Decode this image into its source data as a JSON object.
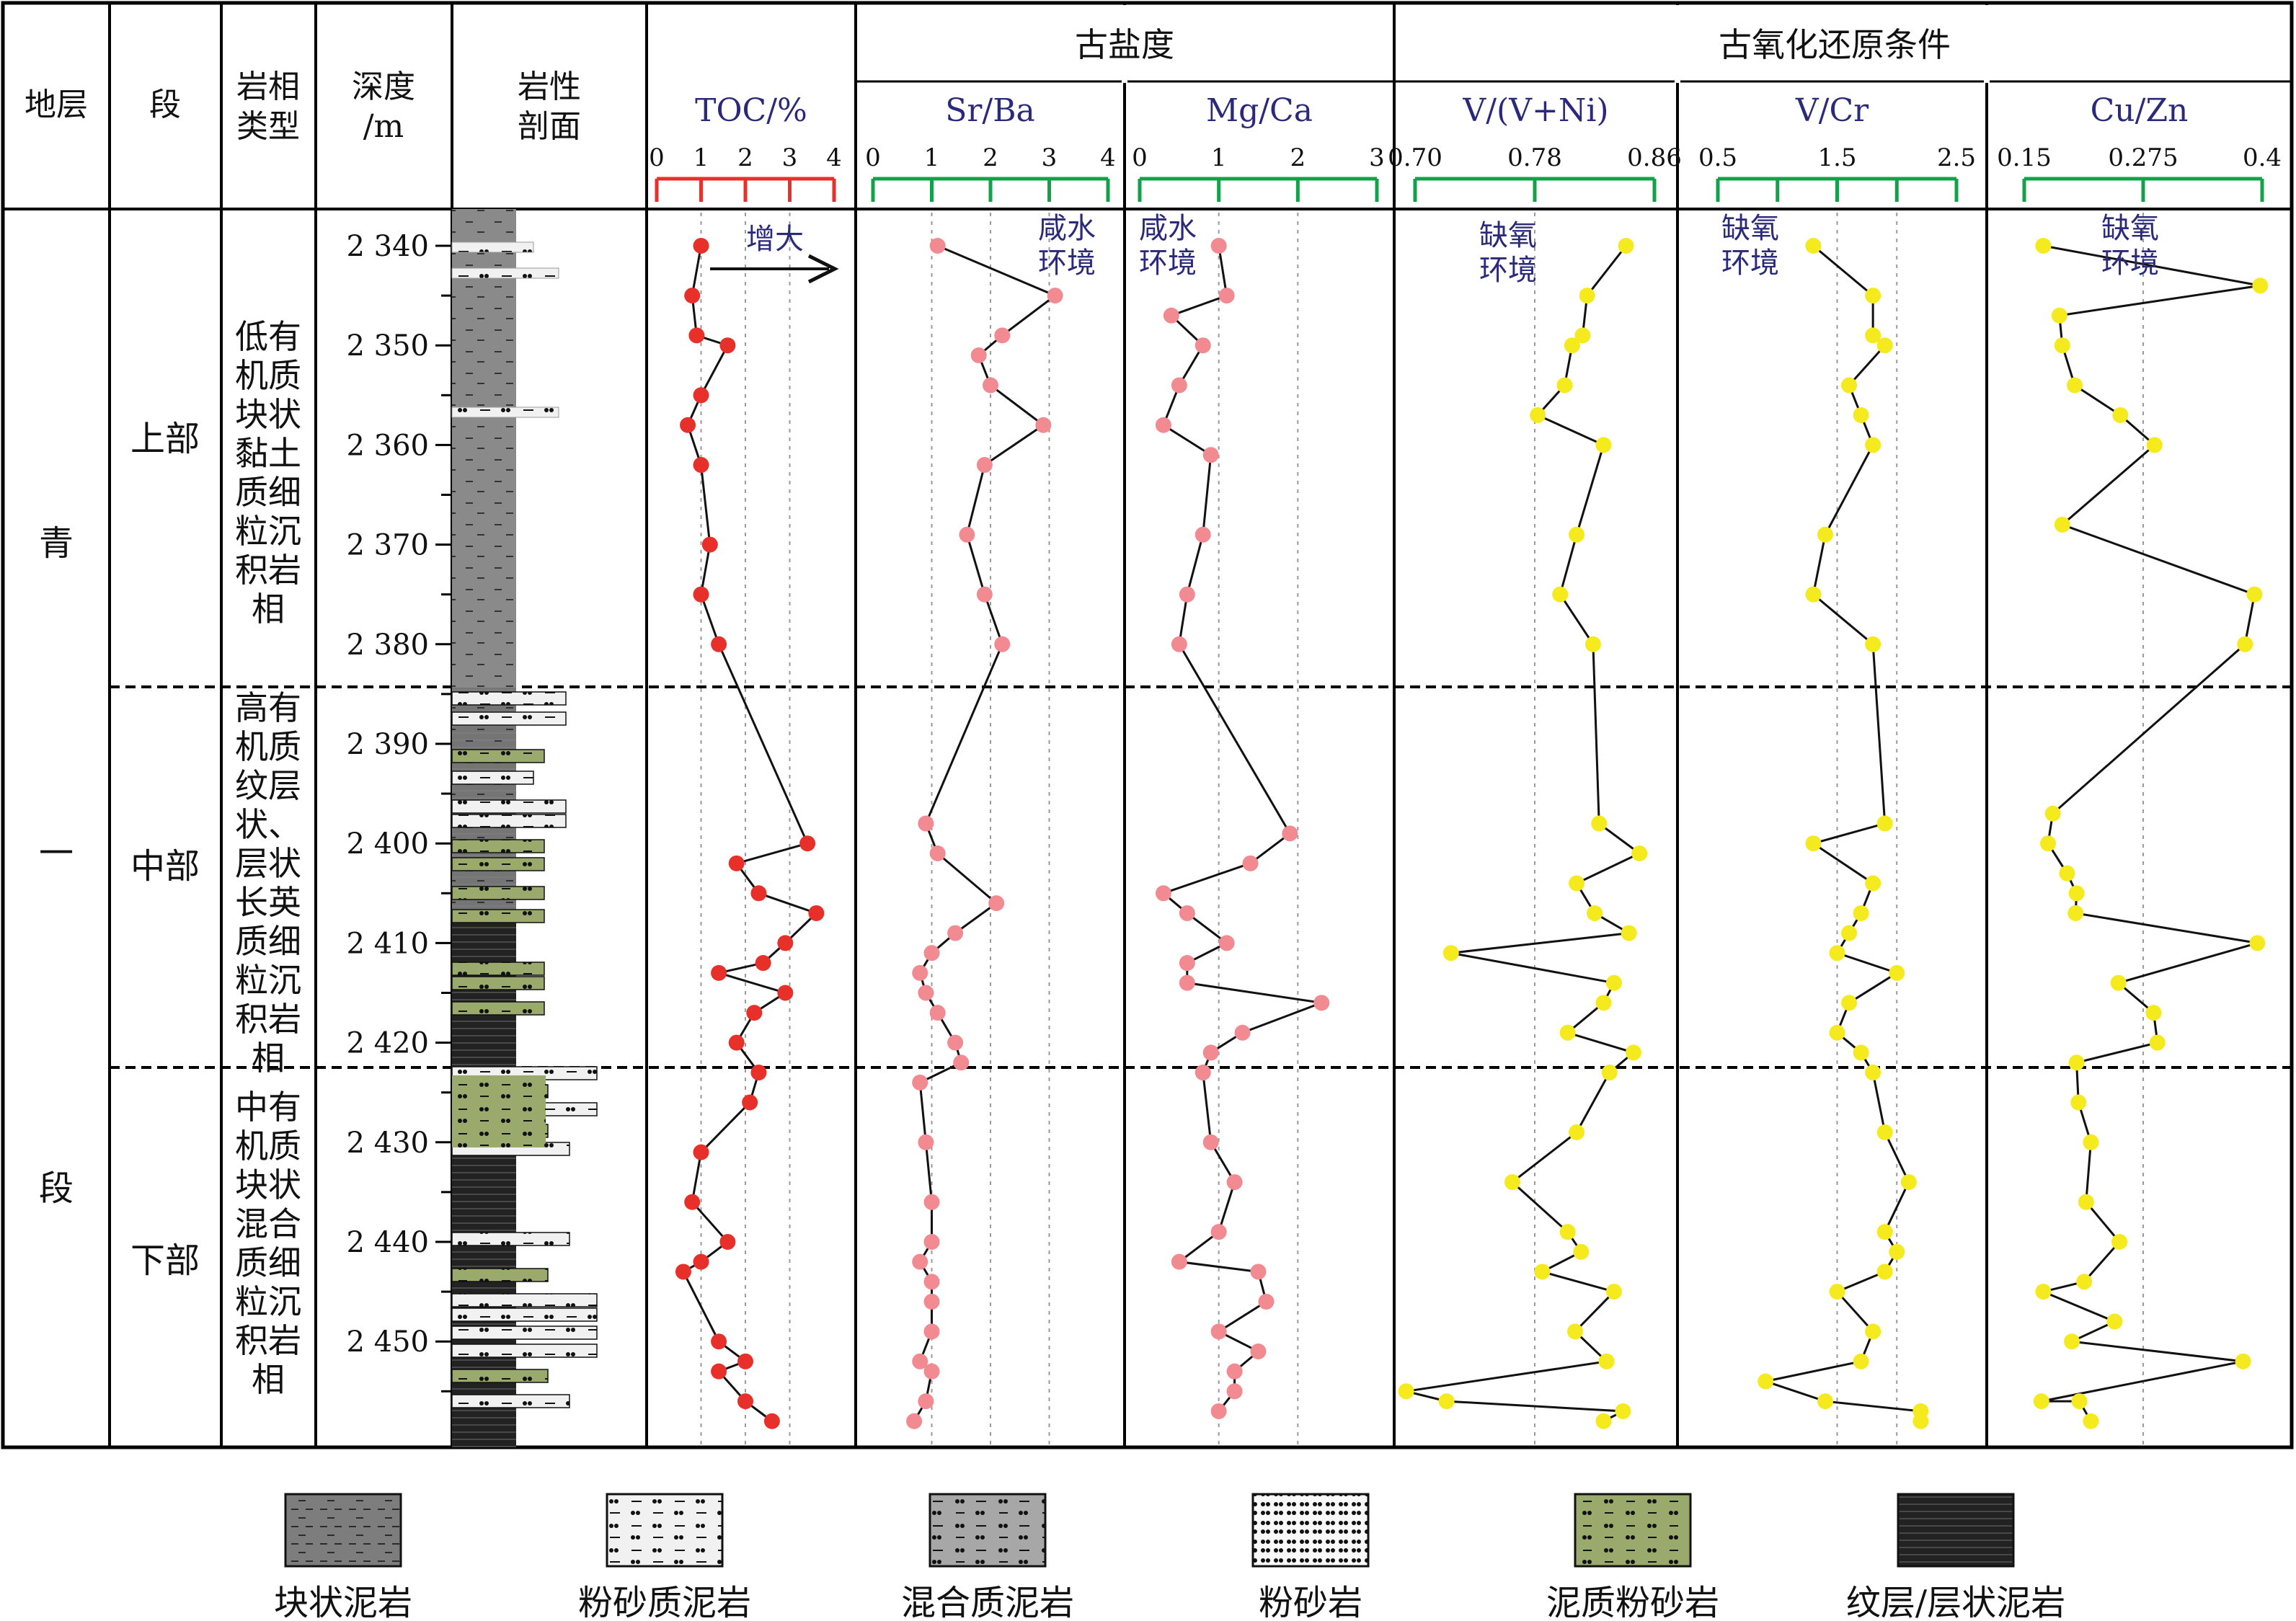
{
  "header": {
    "col_stratum": "地层",
    "col_member": "段",
    "col_facies": [
      "岩相",
      "类型"
    ],
    "col_depth": [
      "深度",
      "/m"
    ],
    "col_litho": [
      "岩性",
      "剖面"
    ],
    "group_salinity": "古盐度",
    "group_redox": "古氧化还原条件"
  },
  "stratum_chars": [
    "青",
    "一",
    "段"
  ],
  "members": [
    {
      "label": "上部",
      "top": 2336,
      "bottom": 2384
    },
    {
      "label": "中部",
      "top": 2384,
      "bottom": 2422
    },
    {
      "label": "下部",
      "top": 2422,
      "bottom": 2458
    }
  ],
  "facies": [
    [
      "低有",
      "机质",
      "块状",
      "黏土",
      "质细",
      "粒沉",
      "积岩",
      "相"
    ],
    [
      "高有",
      "机质",
      "纹层",
      "状、",
      "层状",
      "长英",
      "质细",
      "粒沉",
      "积岩",
      "相"
    ],
    [
      "中有",
      "机质",
      "块状",
      "混合",
      "质细",
      "粒沉",
      "积岩",
      "相"
    ]
  ],
  "depth_ticks": [
    "2 340",
    "2 350",
    "2 360",
    "2 370",
    "2 380",
    "2 390",
    "2 400",
    "2 410",
    "2 420",
    "2 430",
    "2 440",
    "2 450"
  ],
  "legend": [
    {
      "pattern": "massive-mudstone",
      "label": "块状泥岩"
    },
    {
      "pattern": "silty-mudstone",
      "label": "粉砂质泥岩"
    },
    {
      "pattern": "mixed-mudstone",
      "label": "混合质泥岩"
    },
    {
      "pattern": "siltstone",
      "label": "粉砂岩"
    },
    {
      "pattern": "muddy-siltstone",
      "label": "泥质粉砂岩"
    },
    {
      "pattern": "laminated-mudstone",
      "label": "纹层/层状泥岩"
    }
  ],
  "colors": {
    "toc": "#e8302b",
    "salinity": "#f28a91",
    "redox": "#f5ea1e",
    "axis_red": "#e8302b",
    "axis_green": "#13a24a",
    "title_text": "#2b2a7a",
    "silt": "#9aaa6c"
  },
  "chart_data": [
    {
      "type": "line",
      "title": "TOC/%",
      "xlim": [
        0,
        4
      ],
      "xticks": [
        "0",
        "1",
        "2",
        "3",
        "4"
      ],
      "annotation": "增大",
      "points": [
        [
          1.0,
          2340
        ],
        [
          0.8,
          2345
        ],
        [
          0.9,
          2349
        ],
        [
          1.6,
          2350
        ],
        [
          1.0,
          2355
        ],
        [
          0.7,
          2358
        ],
        [
          1.0,
          2362
        ],
        [
          1.2,
          2370
        ],
        [
          1.0,
          2375
        ],
        [
          1.4,
          2380
        ],
        [
          3.4,
          2400
        ],
        [
          1.8,
          2402
        ],
        [
          2.3,
          2405
        ],
        [
          3.6,
          2407
        ],
        [
          2.9,
          2410
        ],
        [
          2.4,
          2412
        ],
        [
          1.4,
          2413
        ],
        [
          2.9,
          2415
        ],
        [
          2.2,
          2417
        ],
        [
          1.8,
          2420
        ],
        [
          2.3,
          2423
        ],
        [
          2.1,
          2426
        ],
        [
          1.0,
          2431
        ],
        [
          0.8,
          2436
        ],
        [
          1.6,
          2440
        ],
        [
          1.0,
          2442
        ],
        [
          0.6,
          2443
        ],
        [
          1.4,
          2450
        ],
        [
          2.0,
          2452
        ],
        [
          1.4,
          2453
        ],
        [
          2.0,
          2456
        ],
        [
          2.6,
          2458
        ]
      ]
    },
    {
      "type": "line",
      "title": "Sr/Ba",
      "xlim": [
        0,
        4
      ],
      "xticks": [
        "0",
        "1",
        "2",
        "3",
        "4"
      ],
      "annotation": [
        "咸水",
        "环境"
      ],
      "points": [
        [
          1.1,
          2340
        ],
        [
          3.1,
          2345
        ],
        [
          2.2,
          2349
        ],
        [
          1.8,
          2351
        ],
        [
          2.0,
          2354
        ],
        [
          2.9,
          2358
        ],
        [
          1.9,
          2362
        ],
        [
          1.6,
          2369
        ],
        [
          1.9,
          2375
        ],
        [
          2.2,
          2380
        ],
        [
          0.9,
          2398
        ],
        [
          1.1,
          2401
        ],
        [
          2.1,
          2406
        ],
        [
          1.4,
          2409
        ],
        [
          1.0,
          2411
        ],
        [
          0.8,
          2413
        ],
        [
          0.9,
          2415
        ],
        [
          1.1,
          2417
        ],
        [
          1.4,
          2420
        ],
        [
          1.5,
          2422
        ],
        [
          0.8,
          2424
        ],
        [
          0.9,
          2430
        ],
        [
          1.0,
          2436
        ],
        [
          1.0,
          2440
        ],
        [
          0.8,
          2442
        ],
        [
          1.0,
          2444
        ],
        [
          1.0,
          2446
        ],
        [
          1.0,
          2449
        ],
        [
          0.8,
          2452
        ],
        [
          1.0,
          2453
        ],
        [
          0.9,
          2456
        ],
        [
          0.7,
          2458
        ]
      ]
    },
    {
      "type": "line",
      "title": "Mg/Ca",
      "xlim": [
        0,
        3
      ],
      "xticks": [
        "0",
        "1",
        "2",
        "3"
      ],
      "annotation": [
        "咸水",
        "环境"
      ],
      "points": [
        [
          1.0,
          2340
        ],
        [
          1.1,
          2345
        ],
        [
          0.4,
          2347
        ],
        [
          0.8,
          2350
        ],
        [
          0.5,
          2354
        ],
        [
          0.3,
          2358
        ],
        [
          0.9,
          2361
        ],
        [
          0.8,
          2369
        ],
        [
          0.6,
          2375
        ],
        [
          0.5,
          2380
        ],
        [
          1.9,
          2399
        ],
        [
          1.4,
          2402
        ],
        [
          0.3,
          2405
        ],
        [
          0.6,
          2407
        ],
        [
          1.1,
          2410
        ],
        [
          0.6,
          2412
        ],
        [
          0.6,
          2414
        ],
        [
          2.3,
          2416
        ],
        [
          1.3,
          2419
        ],
        [
          0.9,
          2421
        ],
        [
          0.8,
          2423
        ],
        [
          0.9,
          2430
        ],
        [
          1.2,
          2434
        ],
        [
          1.0,
          2439
        ],
        [
          0.5,
          2442
        ],
        [
          1.5,
          2443
        ],
        [
          1.6,
          2446
        ],
        [
          1.0,
          2449
        ],
        [
          1.5,
          2451
        ],
        [
          1.2,
          2453
        ],
        [
          1.2,
          2455
        ],
        [
          1.0,
          2457
        ]
      ]
    },
    {
      "type": "line",
      "title": "V/(V+Ni)",
      "xlim": [
        0.7,
        0.86
      ],
      "xticks": [
        "0.70",
        "0.78",
        "0.86"
      ],
      "annotation": [
        "缺氧",
        "环境"
      ],
      "points": [
        [
          0.841,
          2340
        ],
        [
          0.815,
          2345
        ],
        [
          0.812,
          2349
        ],
        [
          0.805,
          2350
        ],
        [
          0.8,
          2354
        ],
        [
          0.782,
          2357
        ],
        [
          0.826,
          2360
        ],
        [
          0.808,
          2369
        ],
        [
          0.797,
          2375
        ],
        [
          0.819,
          2380
        ],
        [
          0.823,
          2398
        ],
        [
          0.85,
          2401
        ],
        [
          0.808,
          2404
        ],
        [
          0.82,
          2407
        ],
        [
          0.843,
          2409
        ],
        [
          0.724,
          2411
        ],
        [
          0.833,
          2414
        ],
        [
          0.826,
          2416
        ],
        [
          0.802,
          2419
        ],
        [
          0.846,
          2421
        ],
        [
          0.83,
          2423
        ],
        [
          0.808,
          2429
        ],
        [
          0.765,
          2434
        ],
        [
          0.802,
          2439
        ],
        [
          0.811,
          2441
        ],
        [
          0.785,
          2443
        ],
        [
          0.833,
          2445
        ],
        [
          0.807,
          2449
        ],
        [
          0.828,
          2452
        ],
        [
          0.694,
          2455
        ],
        [
          0.721,
          2456
        ],
        [
          0.839,
          2457
        ],
        [
          0.826,
          2458
        ]
      ]
    },
    {
      "type": "line",
      "title": "V/Cr",
      "xlim": [
        0.5,
        2.5
      ],
      "xticks": [
        "0.5",
        "1.5",
        "2.5"
      ],
      "annotation": [
        "缺氧",
        "环境"
      ],
      "points": [
        [
          1.3,
          2340
        ],
        [
          1.8,
          2345
        ],
        [
          1.8,
          2349
        ],
        [
          1.9,
          2350
        ],
        [
          1.6,
          2354
        ],
        [
          1.7,
          2357
        ],
        [
          1.8,
          2360
        ],
        [
          1.4,
          2369
        ],
        [
          1.3,
          2375
        ],
        [
          1.8,
          2380
        ],
        [
          1.9,
          2398
        ],
        [
          1.3,
          2400
        ],
        [
          1.8,
          2404
        ],
        [
          1.7,
          2407
        ],
        [
          1.6,
          2409
        ],
        [
          1.5,
          2411
        ],
        [
          2.0,
          2413
        ],
        [
          1.6,
          2416
        ],
        [
          1.5,
          2419
        ],
        [
          1.7,
          2421
        ],
        [
          1.8,
          2423
        ],
        [
          1.9,
          2429
        ],
        [
          2.1,
          2434
        ],
        [
          1.9,
          2439
        ],
        [
          2.0,
          2441
        ],
        [
          1.9,
          2443
        ],
        [
          1.5,
          2445
        ],
        [
          1.8,
          2449
        ],
        [
          1.7,
          2452
        ],
        [
          0.9,
          2454
        ],
        [
          1.4,
          2456
        ],
        [
          2.2,
          2457
        ],
        [
          2.2,
          2458
        ]
      ]
    },
    {
      "type": "line",
      "title": "Cu/Zn",
      "xlim": [
        0.15,
        0.4
      ],
      "xticks": [
        "0.15",
        "0.275",
        "0.4"
      ],
      "annotation": [
        "缺氧",
        "环境"
      ],
      "points": [
        [
          0.17,
          2340
        ],
        [
          0.398,
          2344
        ],
        [
          0.187,
          2347
        ],
        [
          0.19,
          2350
        ],
        [
          0.203,
          2354
        ],
        [
          0.251,
          2357
        ],
        [
          0.287,
          2360
        ],
        [
          0.19,
          2368
        ],
        [
          0.392,
          2375
        ],
        [
          0.382,
          2380
        ],
        [
          0.18,
          2397
        ],
        [
          0.175,
          2400
        ],
        [
          0.195,
          2403
        ],
        [
          0.205,
          2405
        ],
        [
          0.204,
          2407
        ],
        [
          0.395,
          2410
        ],
        [
          0.249,
          2414
        ],
        [
          0.286,
          2417
        ],
        [
          0.29,
          2420
        ],
        [
          0.205,
          2422
        ],
        [
          0.207,
          2426
        ],
        [
          0.22,
          2430
        ],
        [
          0.215,
          2436
        ],
        [
          0.25,
          2440
        ],
        [
          0.213,
          2444
        ],
        [
          0.17,
          2445
        ],
        [
          0.245,
          2448
        ],
        [
          0.2,
          2450
        ],
        [
          0.38,
          2452
        ],
        [
          0.168,
          2456
        ],
        [
          0.208,
          2456
        ],
        [
          0.22,
          2458
        ]
      ]
    }
  ]
}
